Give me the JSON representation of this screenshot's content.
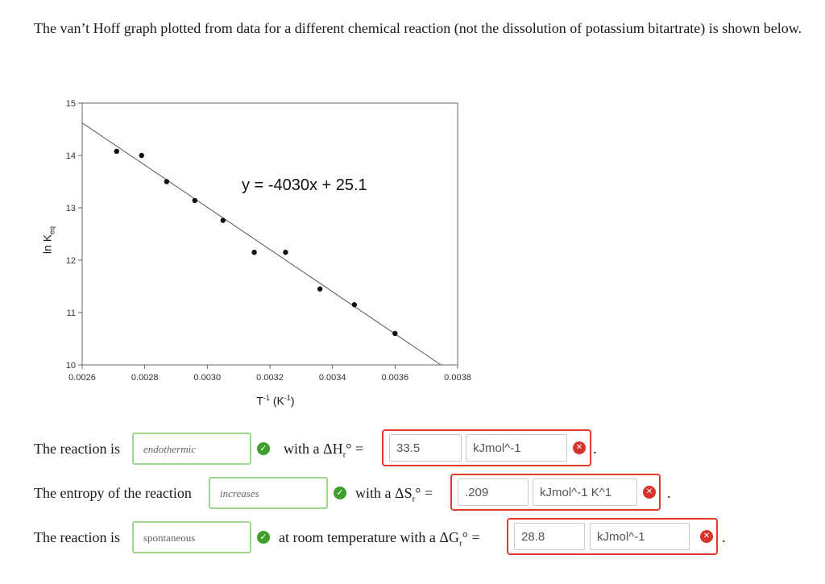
{
  "intro": "The van’t Hoff graph plotted from data for a different chemical reaction (not the dissolution of potassium bitartrate) is shown below.",
  "chart_data": {
    "type": "scatter",
    "xlabel_base": "T",
    "xlabel_sup": "-1",
    "xlabel_unit_base": "(K",
    "xlabel_unit_sup": "-1",
    "xlabel_unit_end": ")",
    "ylabel_base": "ln K",
    "ylabel_sub": "eq",
    "xlim": [
      0.0026,
      0.0038
    ],
    "ylim": [
      10,
      15
    ],
    "xticks": [
      "0.0026",
      "0.0028",
      "0.0030",
      "0.0032",
      "0.0034",
      "0.0036",
      "0.0038"
    ],
    "yticks": [
      "10",
      "11",
      "12",
      "13",
      "14",
      "15"
    ],
    "trendline": {
      "slope": -4030,
      "intercept": 25.1
    },
    "equation_label": "y = -4030x + 25.1",
    "points": [
      {
        "x": 0.00271,
        "y": 14.08
      },
      {
        "x": 0.00279,
        "y": 14.0
      },
      {
        "x": 0.00287,
        "y": 13.5
      },
      {
        "x": 0.00296,
        "y": 13.14
      },
      {
        "x": 0.00305,
        "y": 12.76
      },
      {
        "x": 0.00315,
        "y": 12.15
      },
      {
        "x": 0.00325,
        "y": 12.15
      },
      {
        "x": 0.00336,
        "y": 11.45
      },
      {
        "x": 0.00347,
        "y": 11.15
      },
      {
        "x": 0.0036,
        "y": 10.6
      }
    ],
    "grid": false
  },
  "rows": [
    {
      "prefix": "The reaction is",
      "answer": "endothermic",
      "connector": "with a ΔH",
      "sub": "r",
      "after_sub": "° =",
      "value": "33.5",
      "unit": "kJmol^-1",
      "end": "."
    },
    {
      "prefix": "The entropy of the reaction",
      "answer": "increases",
      "connector": "with a ΔS",
      "sub": "r",
      "after_sub": "° =",
      "value": ".209",
      "unit": "kJmol^-1 K^1",
      "end": "."
    },
    {
      "prefix": "The reaction is",
      "answer": "spontaneous",
      "connector": "at room temperature with a ΔG",
      "sub": "r",
      "after_sub": "° =",
      "value": "28.8",
      "unit": "kJmol^-1",
      "end": "."
    }
  ],
  "icons": {
    "correct": "check-icon",
    "incorrect": "x-icon"
  },
  "colors": {
    "correct": "#3f9d2c",
    "incorrect": "#d8332a",
    "correct_border": "#9fd98f",
    "incorrect_border": "#e03b2e"
  }
}
